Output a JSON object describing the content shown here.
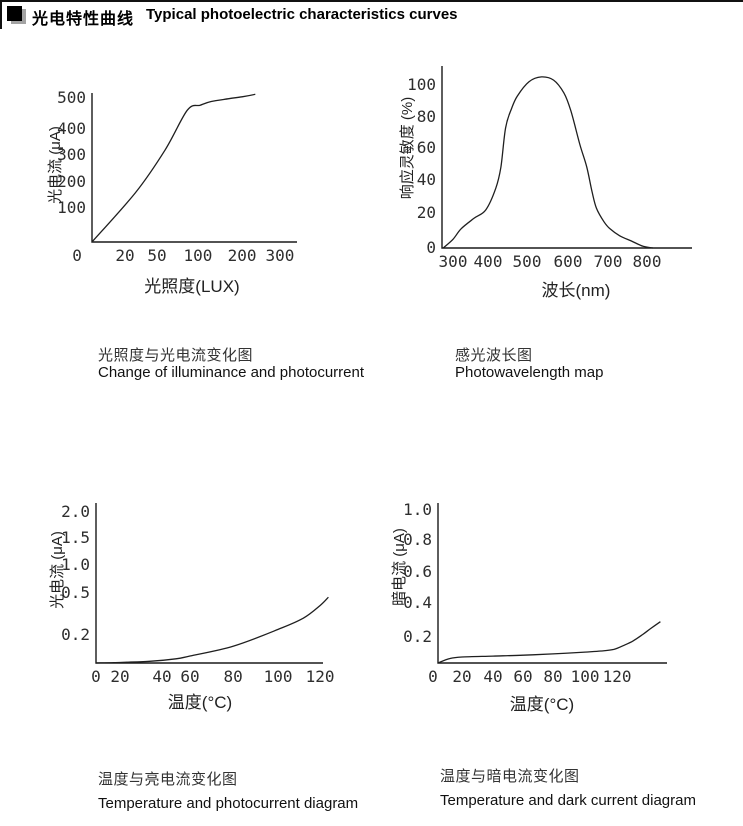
{
  "header": {
    "bullet": "■",
    "title_zh": "光电特性曲线",
    "title_en": "Typical photoelectric characteristics curves"
  },
  "colors": {
    "line": "#1f1f1f",
    "axis": "#1a1a1a",
    "text": "#2e2e2e"
  },
  "chart_data": [
    {
      "id": "illuminance-photocurrent",
      "type": "line",
      "caption_zh": "光照度与光电流变化图",
      "caption_en": "Change of illuminance and photocurrent",
      "xlabel": "光照度(LUX)",
      "ylabel": "光电流 (μA)",
      "x_axis_note": "non-linear axis, ticks evenly spaced",
      "xlim": [
        0,
        300
      ],
      "ylim": [
        0,
        520
      ],
      "x_ticks": [
        {
          "t": "0",
          "f": -0.073
        },
        {
          "t": "20",
          "f": 0.161
        },
        {
          "t": "50",
          "f": 0.317
        },
        {
          "t": "100",
          "f": 0.517
        },
        {
          "t": "200",
          "f": 0.732
        },
        {
          "t": "300",
          "f": 0.917
        }
      ],
      "y_ticks": [
        {
          "t": "100",
          "f": 0.228
        },
        {
          "t": "200",
          "f": 0.403
        },
        {
          "t": "300",
          "f": 0.584
        },
        {
          "t": "400",
          "f": 0.758
        },
        {
          "t": "500",
          "f": 0.966
        }
      ],
      "x_map": [
        [
          0,
          0
        ],
        [
          20,
          0.161
        ],
        [
          50,
          0.317
        ],
        [
          100,
          0.517
        ],
        [
          200,
          0.732
        ],
        [
          300,
          0.917
        ]
      ],
      "y_map": [
        [
          0,
          0
        ],
        [
          100,
          0.228
        ],
        [
          200,
          0.403
        ],
        [
          300,
          0.584
        ],
        [
          400,
          0.758
        ],
        [
          500,
          0.966
        ]
      ],
      "points": [
        [
          0,
          0
        ],
        [
          30,
          160
        ],
        [
          60,
          320
        ],
        [
          87,
          461
        ],
        [
          105,
          477
        ],
        [
          130,
          489
        ],
        [
          170,
          498
        ],
        [
          200,
          504
        ],
        [
          235,
          512
        ]
      ]
    },
    {
      "id": "photo-wavelength",
      "type": "line",
      "caption_zh": "感光波长图",
      "caption_en": "Photowavelength map",
      "xlabel": "波长(nm)",
      "ylabel": "响应灵敏度 (%)",
      "xlim": [
        272,
        920
      ],
      "ylim": [
        0,
        110
      ],
      "x_ticks": [
        {
          "t": "300",
          "f": 0.044
        },
        {
          "t": "400",
          "f": 0.184
        },
        {
          "t": "500",
          "f": 0.34
        },
        {
          "t": "600",
          "f": 0.504
        },
        {
          "t": "700",
          "f": 0.664
        },
        {
          "t": "800",
          "f": 0.82
        }
      ],
      "y_ticks": [
        {
          "t": "0",
          "f": 0
        },
        {
          "t": "20",
          "f": 0.192
        },
        {
          "t": "40",
          "f": 0.374
        },
        {
          "t": "60",
          "f": 0.549
        },
        {
          "t": "80",
          "f": 0.72
        },
        {
          "t": "100",
          "f": 0.896
        }
      ],
      "x_map": [
        [
          300,
          0.044
        ],
        [
          400,
          0.184
        ],
        [
          500,
          0.34
        ],
        [
          600,
          0.504
        ],
        [
          700,
          0.664
        ],
        [
          800,
          0.82
        ]
      ],
      "y_map": [
        [
          0,
          0
        ],
        [
          20,
          0.192
        ],
        [
          40,
          0.374
        ],
        [
          60,
          0.549
        ],
        [
          80,
          0.72
        ],
        [
          100,
          0.896
        ]
      ],
      "points": [
        [
          272,
          0
        ],
        [
          300,
          5
        ],
        [
          323,
          11
        ],
        [
          360,
          17
        ],
        [
          394,
          22
        ],
        [
          420,
          35
        ],
        [
          433,
          48
        ],
        [
          445,
          73
        ],
        [
          460,
          85
        ],
        [
          475,
          93
        ],
        [
          505,
          102
        ],
        [
          535,
          105
        ],
        [
          565,
          103
        ],
        [
          590,
          95
        ],
        [
          607,
          84
        ],
        [
          630,
          62
        ],
        [
          647,
          48
        ],
        [
          660,
          33
        ],
        [
          671,
          23
        ],
        [
          690,
          15
        ],
        [
          705,
          11
        ],
        [
          730,
          7
        ],
        [
          760,
          4
        ],
        [
          790,
          1
        ],
        [
          815,
          0
        ]
      ]
    },
    {
      "id": "temperature-photocurrent",
      "type": "line",
      "caption_zh": "温度与亮电流变化图",
      "caption_en": "Temperature and photocurrent diagram",
      "xlabel": "温度(°C)",
      "ylabel": "光电流 (μA)",
      "y_axis_note": "non-linear axis",
      "xlim": [
        0,
        125
      ],
      "ylim": [
        0,
        2.0
      ],
      "x_ticks": [
        {
          "t": "0",
          "f": 0
        },
        {
          "t": "20",
          "f": 0.106
        },
        {
          "t": "40",
          "f": 0.291
        },
        {
          "t": "60",
          "f": 0.414
        },
        {
          "t": "80",
          "f": 0.604
        },
        {
          "t": "100",
          "f": 0.802
        },
        {
          "t": "120",
          "f": 0.987
        }
      ],
      "y_ticks": [
        {
          "t": "0.2",
          "f": 0.175
        },
        {
          "t": "0.5",
          "f": 0.4375
        },
        {
          "t": "1.0",
          "f": 0.6125
        },
        {
          "t": "1.5",
          "f": 0.781
        },
        {
          "t": "2.0",
          "f": 0.944
        }
      ],
      "x_map": [
        [
          0,
          0
        ],
        [
          20,
          0.106
        ],
        [
          40,
          0.291
        ],
        [
          60,
          0.414
        ],
        [
          80,
          0.604
        ],
        [
          100,
          0.802
        ],
        [
          120,
          0.987
        ]
      ],
      "y_map": [
        [
          0,
          0
        ],
        [
          0.2,
          0.175
        ],
        [
          0.5,
          0.4375
        ],
        [
          1.0,
          0.6125
        ],
        [
          1.5,
          0.781
        ],
        [
          2.0,
          0.944
        ]
      ],
      "points": [
        [
          0,
          0
        ],
        [
          15,
          0.003
        ],
        [
          34,
          0.012
        ],
        [
          50,
          0.03
        ],
        [
          60,
          0.05
        ],
        [
          80,
          0.12
        ],
        [
          100,
          0.24
        ],
        [
          112,
          0.32
        ],
        [
          120,
          0.41
        ],
        [
          124,
          0.47
        ]
      ]
    },
    {
      "id": "temperature-darkcurrent",
      "type": "line",
      "caption_zh": "温度与暗电流变化图",
      "caption_en": "Temperature and dark current diagram",
      "xlabel": "温度(°C)",
      "ylabel": "暗电流 (μA)",
      "xlim": [
        0,
        150
      ],
      "ylim": [
        0,
        1.0
      ],
      "x_ticks": [
        {
          "t": "0",
          "f": -0.022
        },
        {
          "t": "20",
          "f": 0.105
        },
        {
          "t": "40",
          "f": 0.24
        },
        {
          "t": "60",
          "f": 0.371
        },
        {
          "t": "80",
          "f": 0.502
        },
        {
          "t": "100",
          "f": 0.642
        },
        {
          "t": "120",
          "f": 0.782
        }
      ],
      "y_ticks": [
        {
          "t": "0.2",
          "f": 0.1625
        },
        {
          "t": "0.4",
          "f": 0.375
        },
        {
          "t": "0.6",
          "f": 0.569
        },
        {
          "t": "0.8",
          "f": 0.769
        },
        {
          "t": "1.0",
          "f": 0.956
        }
      ],
      "x_map": [
        [
          0,
          0
        ],
        [
          20,
          0.105
        ],
        [
          40,
          0.24
        ],
        [
          60,
          0.371
        ],
        [
          80,
          0.502
        ],
        [
          100,
          0.642
        ],
        [
          120,
          0.782
        ]
      ],
      "y_map": [
        [
          0,
          0
        ],
        [
          0.2,
          0.1625
        ],
        [
          0.4,
          0.375
        ],
        [
          0.6,
          0.569
        ],
        [
          0.8,
          0.769
        ],
        [
          1.0,
          0.956
        ]
      ],
      "points": [
        [
          0,
          0
        ],
        [
          10,
          0.035
        ],
        [
          20,
          0.046
        ],
        [
          40,
          0.053
        ],
        [
          60,
          0.06
        ],
        [
          80,
          0.07
        ],
        [
          100,
          0.084
        ],
        [
          110,
          0.092
        ],
        [
          118,
          0.105
        ],
        [
          125,
          0.14
        ],
        [
          130,
          0.17
        ],
        [
          136,
          0.215
        ],
        [
          141,
          0.25
        ],
        [
          147,
          0.29
        ]
      ]
    }
  ]
}
